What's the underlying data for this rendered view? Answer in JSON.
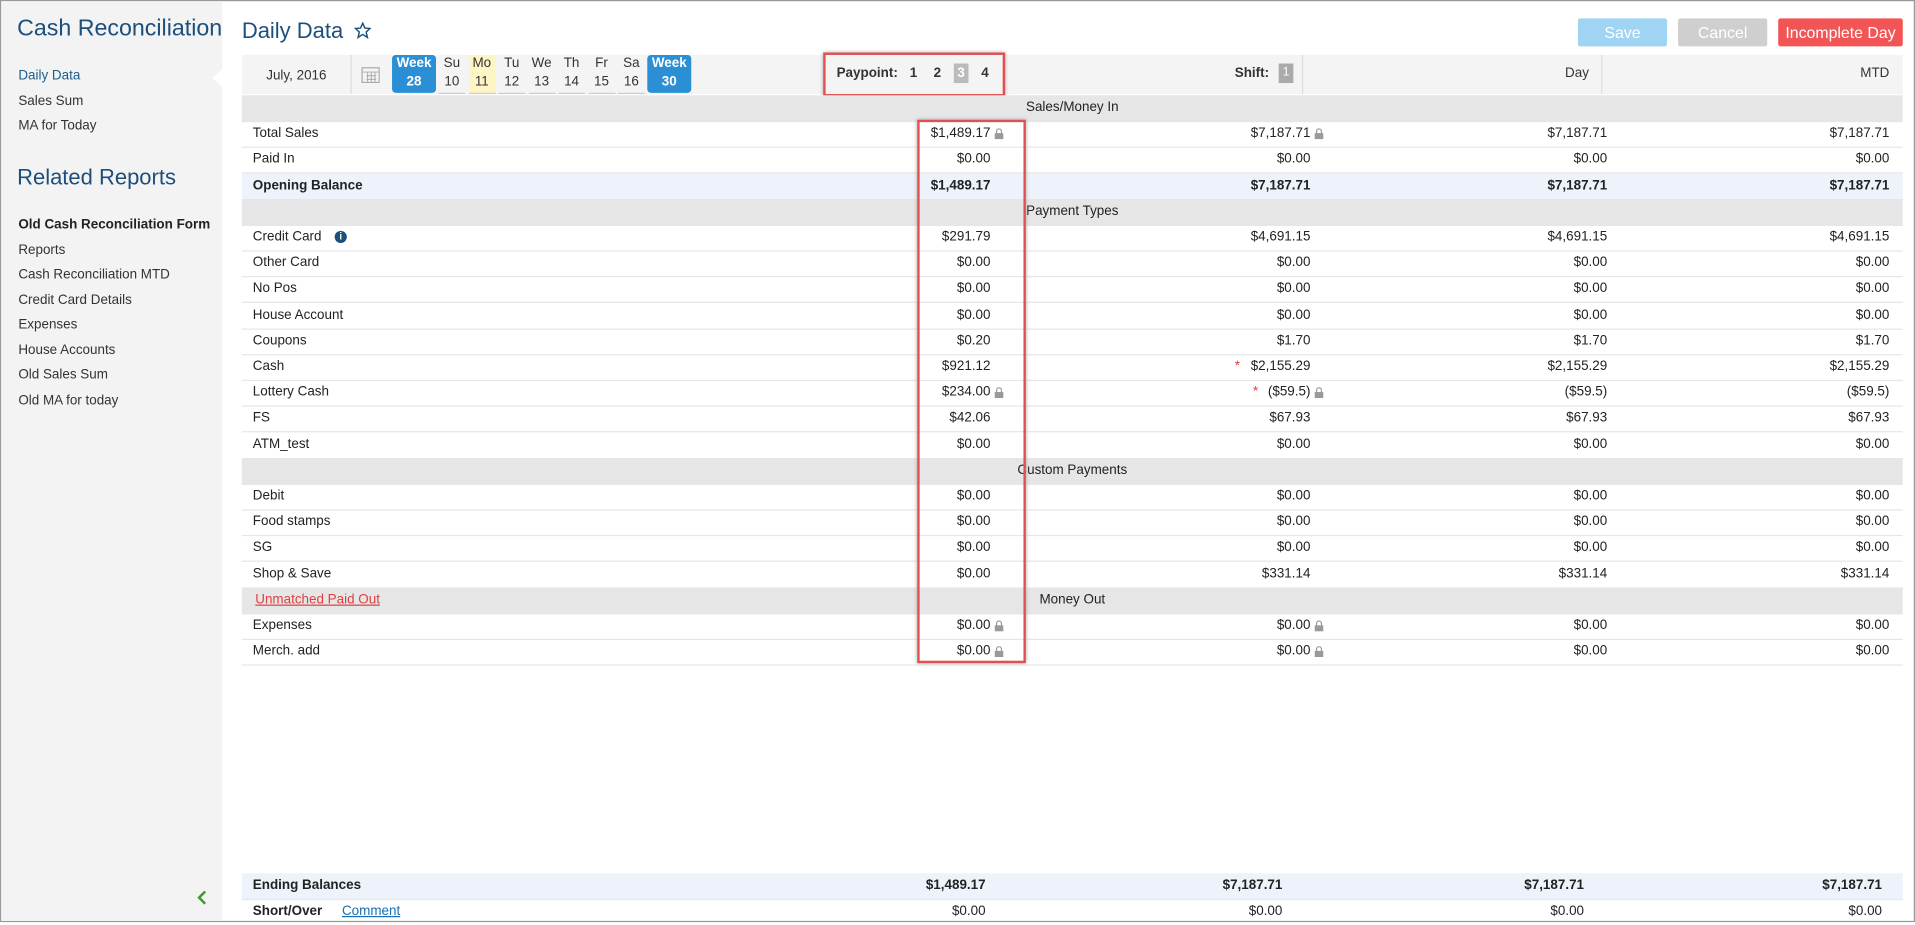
{
  "sidebar": {
    "title": "Cash Reconciliation",
    "nav": [
      "Daily Data",
      "Sales Sum",
      "MA for Today"
    ],
    "related_title": "Related Reports",
    "related": [
      "Old Cash Reconciliation Form",
      "Reports",
      "Cash Reconciliation MTD",
      "Credit Card Details",
      "Expenses",
      "House Accounts",
      "Old Sales Sum",
      "Old MA for today"
    ]
  },
  "header": {
    "title": "Daily Data",
    "buttons": {
      "save": "Save",
      "cancel": "Cancel",
      "incomplete": "Incomplete Day"
    }
  },
  "date_bar": {
    "month": "July, 2016",
    "week_prev": {
      "label": "Week",
      "number": "28"
    },
    "days": [
      {
        "day": "Su",
        "date": "10"
      },
      {
        "day": "Mo",
        "date": "11"
      },
      {
        "day": "Tu",
        "date": "12"
      },
      {
        "day": "We",
        "date": "13"
      },
      {
        "day": "Th",
        "date": "14"
      },
      {
        "day": "Fr",
        "date": "15"
      },
      {
        "day": "Sa",
        "date": "16"
      }
    ],
    "week_next": {
      "label": "Week",
      "number": "30"
    },
    "paypoint_label": "Paypoint:",
    "paypoints": [
      "1",
      "2",
      "3",
      "4"
    ],
    "shift_label": "Shift:",
    "shift": "1",
    "columns": [
      "Day",
      "MTD"
    ]
  },
  "table": {
    "sections": [
      {
        "title": "Sales/Money In",
        "rows": [
          {
            "label": "Total Sales",
            "values": [
              "$1,489.17",
              "$7,187.71",
              "$7,187.71",
              "$7,187.71"
            ],
            "lock": true
          },
          {
            "label": "Paid In",
            "values": [
              "$0.00",
              "$0.00",
              "$0.00",
              "$0.00"
            ]
          },
          {
            "label": "Opening Balance",
            "values": [
              "$1,489.17",
              "$7,187.71",
              "$7,187.71",
              "$7,187.71"
            ],
            "total": true
          }
        ]
      },
      {
        "title": "Payment Types",
        "rows": [
          {
            "label": "Credit Card",
            "values": [
              "$291.79",
              "$4,691.15",
              "$4,691.15",
              "$4,691.15"
            ],
            "info": true
          },
          {
            "label": "Other Card",
            "values": [
              "$0.00",
              "$0.00",
              "$0.00",
              "$0.00"
            ]
          },
          {
            "label": "No Pos",
            "values": [
              "$0.00",
              "$0.00",
              "$0.00",
              "$0.00"
            ]
          },
          {
            "label": "House Account",
            "values": [
              "$0.00",
              "$0.00",
              "$0.00",
              "$0.00"
            ]
          },
          {
            "label": "Coupons",
            "values": [
              "$0.20",
              "$1.70",
              "$1.70",
              "$1.70"
            ]
          },
          {
            "label": "Cash",
            "values": [
              "$921.12",
              "$2,155.29",
              "$2,155.29",
              "$2,155.29"
            ],
            "required": true
          },
          {
            "label": "Lottery Cash",
            "values": [
              "$234.00",
              "($59.5)",
              "($59.5)",
              "($59.5)"
            ],
            "lock": true,
            "required": true
          },
          {
            "label": "FS",
            "values": [
              "$42.06",
              "$67.93",
              "$67.93",
              "$67.93"
            ]
          },
          {
            "label": "ATM_test",
            "values": [
              "$0.00",
              "$0.00",
              "$0.00",
              "$0.00"
            ]
          }
        ]
      },
      {
        "title": "Custom Payments",
        "rows": [
          {
            "label": "Debit",
            "values": [
              "$0.00",
              "$0.00",
              "$0.00",
              "$0.00"
            ]
          },
          {
            "label": "Food stamps",
            "values": [
              "$0.00",
              "$0.00",
              "$0.00",
              "$0.00"
            ]
          },
          {
            "label": "SG",
            "values": [
              "$0.00",
              "$0.00",
              "$0.00",
              "$0.00"
            ]
          },
          {
            "label": "Shop & Save",
            "values": [
              "$0.00",
              "$331.14",
              "$331.14",
              "$331.14"
            ]
          }
        ]
      },
      {
        "title": "Money Out",
        "link": "Unmatched Paid Out",
        "rows": [
          {
            "label": "Expenses",
            "values": [
              "$0.00",
              "$0.00",
              "$0.00",
              "$0.00"
            ],
            "lock": true
          },
          {
            "label": "Merch. add",
            "values": [
              "$0.00",
              "$0.00",
              "$0.00",
              "$0.00"
            ],
            "lock": true
          }
        ]
      }
    ]
  },
  "footer": {
    "ending": {
      "label": "Ending Balances",
      "values": [
        "$1,489.17",
        "$7,187.71",
        "$7,187.71",
        "$7,187.71"
      ]
    },
    "short_over": {
      "label": "Short/Over",
      "comment": "Comment",
      "values": [
        "$0.00",
        "$0.00",
        "$0.00",
        "$0.00"
      ]
    }
  }
}
